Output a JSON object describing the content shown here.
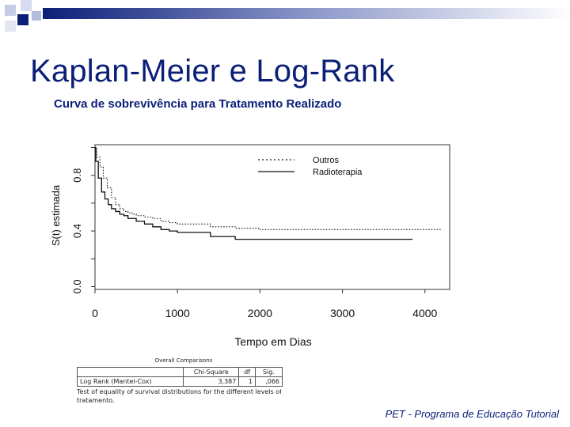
{
  "slide": {
    "title": "Kaplan-Meier e Log-Rank",
    "subtitle": "Curva de sobrevivência para Tratamento Realizado",
    "footer": "PET - Programa de Educação Tutorial",
    "accent_color": "#0b1f78"
  },
  "chart_data": {
    "type": "line",
    "style": "step",
    "xlabel": "Tempo em Dias",
    "ylabel": "S(t) estimada",
    "xlim": [
      0,
      4300
    ],
    "ylim": [
      -0.02,
      1.02
    ],
    "xticks": [
      "0",
      "1000",
      "2000",
      "3000",
      "4000"
    ],
    "yticks": [
      "0.0",
      "0.4",
      "0.8"
    ],
    "legend_position": "top-right",
    "series": [
      {
        "name": "Outros",
        "dash": "dotted",
        "x": [
          0,
          20,
          60,
          100,
          150,
          200,
          250,
          300,
          350,
          400,
          450,
          500,
          600,
          700,
          800,
          900,
          1000,
          1100,
          1400,
          1700,
          2000,
          4200
        ],
        "y": [
          1.0,
          0.93,
          0.86,
          0.78,
          0.71,
          0.64,
          0.59,
          0.56,
          0.54,
          0.53,
          0.52,
          0.51,
          0.5,
          0.49,
          0.47,
          0.46,
          0.45,
          0.45,
          0.43,
          0.42,
          0.41,
          0.41
        ]
      },
      {
        "name": "Radioterapia",
        "dash": "solid",
        "x": [
          0,
          10,
          40,
          80,
          120,
          160,
          200,
          250,
          300,
          350,
          400,
          500,
          600,
          700,
          800,
          900,
          1000,
          1400,
          1700,
          3850
        ],
        "y": [
          1.0,
          0.9,
          0.78,
          0.68,
          0.63,
          0.59,
          0.56,
          0.54,
          0.52,
          0.51,
          0.49,
          0.47,
          0.45,
          0.43,
          0.41,
          0.4,
          0.39,
          0.36,
          0.34,
          0.34
        ]
      }
    ]
  },
  "stats_table": {
    "title": "Overall Comparisons",
    "headers": [
      "",
      "Chi-Square",
      "df",
      "Sig."
    ],
    "row": {
      "label": "Log Rank (Mantel-Cox)",
      "chi_square": "3,387",
      "df": "1",
      "sig": ",066"
    },
    "footnote_line1": "Test of equality of survival distributions for the different levels of",
    "footnote_line2": "tratamento."
  }
}
